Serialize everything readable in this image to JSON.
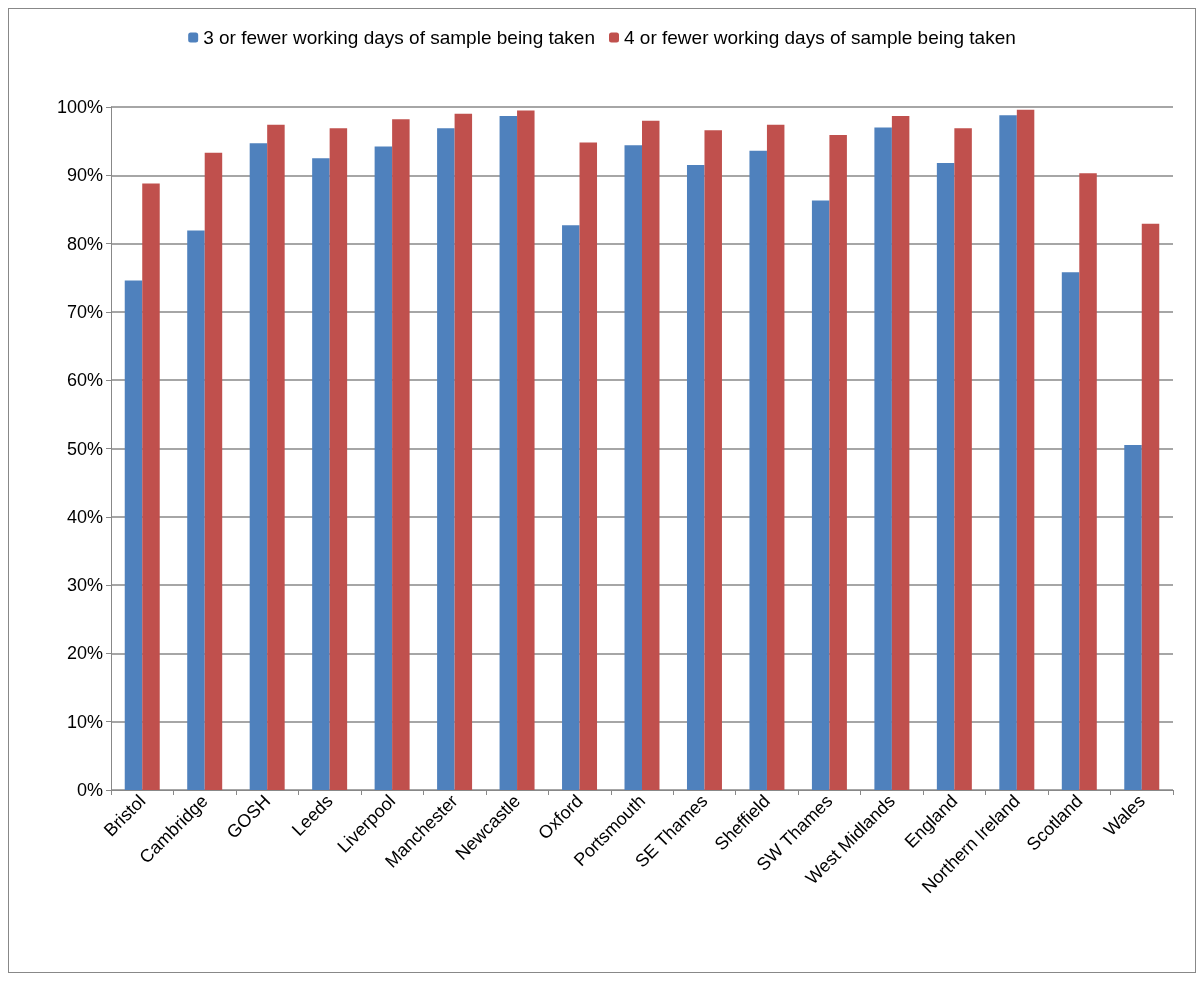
{
  "chart_data": {
    "type": "bar",
    "categories": [
      "Bristol",
      "Cambridge",
      "GOSH",
      "Leeds",
      "Liverpool",
      "Manchester",
      "Newcastle",
      "Oxford",
      "Portsmouth",
      "SE Thames",
      "Sheffield",
      "SW Thames",
      "West Midlands",
      "England",
      "Northern Ireland",
      "Scotland",
      "Wales"
    ],
    "series": [
      {
        "name": "3 or fewer working days of sample being taken",
        "color": "#4f81bd",
        "values": [
          74.6,
          81.9,
          94.7,
          92.5,
          94.2,
          96.9,
          98.7,
          82.7,
          94.4,
          91.5,
          93.6,
          86.3,
          97.0,
          91.8,
          98.8,
          75.8,
          50.5
        ]
      },
      {
        "name": "4 or fewer working days of sample being taken",
        "color": "#c0504d",
        "values": [
          88.8,
          93.3,
          97.4,
          96.9,
          98.2,
          99.0,
          99.5,
          94.8,
          98.0,
          96.6,
          97.4,
          95.9,
          98.7,
          96.9,
          99.6,
          90.3,
          82.9
        ]
      }
    ],
    "ylim": [
      0,
      100
    ],
    "yticks": [
      {
        "value": 0,
        "label": "0%"
      },
      {
        "value": 10,
        "label": "10%"
      },
      {
        "value": 20,
        "label": "20%"
      },
      {
        "value": 30,
        "label": "30%"
      },
      {
        "value": 40,
        "label": "40%"
      },
      {
        "value": 50,
        "label": "50%"
      },
      {
        "value": 60,
        "label": "60%"
      },
      {
        "value": 70,
        "label": "70%"
      },
      {
        "value": 80,
        "label": "80%"
      },
      {
        "value": 90,
        "label": "90%"
      },
      {
        "value": 100,
        "label": "100%"
      }
    ],
    "grid": "y",
    "legend": "top"
  }
}
